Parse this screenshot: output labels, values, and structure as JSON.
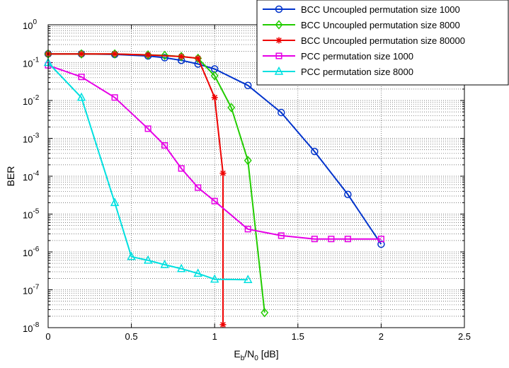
{
  "chart_data": {
    "type": "line",
    "xlabel": {
      "base": "E",
      "sub1": "b",
      "mid": "/N",
      "sub2": "0",
      "unit": " [dB]"
    },
    "ylabel": "BER",
    "xlim": [
      0,
      2.5
    ],
    "ylim_log10": [
      -8,
      0
    ],
    "y_scale": "log",
    "grid": true,
    "legend_position": "top-right",
    "x_ticks": [
      {
        "value": 0,
        "label": "0"
      },
      {
        "value": 0.5,
        "label": "0.5"
      },
      {
        "value": 1,
        "label": "1"
      },
      {
        "value": 1.5,
        "label": "1.5"
      },
      {
        "value": 2,
        "label": "2"
      },
      {
        "value": 2.5,
        "label": "2.5"
      }
    ],
    "y_ticks": [
      {
        "exp": 0,
        "base": "10",
        "sup": "0"
      },
      {
        "exp": -1,
        "base": "10",
        "sup": "-1"
      },
      {
        "exp": -2,
        "base": "10",
        "sup": "-2"
      },
      {
        "exp": -3,
        "base": "10",
        "sup": "-3"
      },
      {
        "exp": -4,
        "base": "10",
        "sup": "-4"
      },
      {
        "exp": -5,
        "base": "10",
        "sup": "-5"
      },
      {
        "exp": -6,
        "base": "10",
        "sup": "-6"
      },
      {
        "exp": -7,
        "base": "10",
        "sup": "-7"
      },
      {
        "exp": -8,
        "base": "10",
        "sup": "-8"
      }
    ],
    "series": [
      {
        "name": "BCC Uncoupled permutation size 1000",
        "color": "#0033cc",
        "marker": "circle",
        "x": [
          0,
          0.2,
          0.4,
          0.6,
          0.7,
          0.8,
          0.9,
          1.0,
          1.2,
          1.4,
          1.6,
          1.8,
          2.0
        ],
        "y": [
          0.17,
          0.17,
          0.165,
          0.15,
          0.135,
          0.115,
          0.092,
          0.068,
          0.025,
          0.0048,
          0.00045,
          3.3e-05,
          1.6e-06
        ]
      },
      {
        "name": "BCC Uncoupled permutation size 8000",
        "color": "#22cc00",
        "marker": "diamond",
        "x": [
          0,
          0.2,
          0.4,
          0.6,
          0.7,
          0.8,
          0.9,
          1.0,
          1.1,
          1.2,
          1.3
        ],
        "y": [
          0.17,
          0.17,
          0.17,
          0.16,
          0.155,
          0.145,
          0.13,
          0.045,
          0.0065,
          0.00026,
          2.5e-08
        ]
      },
      {
        "name": "BCC Uncoupled permutation size 80000",
        "color": "#ee0000",
        "marker": "star",
        "x": [
          0,
          0.2,
          0.4,
          0.6,
          0.8,
          0.9,
          1.0,
          1.05,
          1.05
        ],
        "y": [
          0.17,
          0.17,
          0.17,
          0.16,
          0.145,
          0.13,
          0.012,
          0.00012,
          1.2e-08
        ]
      },
      {
        "name": "PCC permutation size 1000",
        "color": "#e600e6",
        "marker": "square",
        "x": [
          0,
          0.2,
          0.4,
          0.6,
          0.7,
          0.8,
          0.9,
          1.0,
          1.2,
          1.4,
          1.6,
          1.7,
          1.8,
          2.0
        ],
        "y": [
          0.085,
          0.042,
          0.012,
          0.0018,
          0.00065,
          0.00016,
          5e-05,
          2.2e-05,
          4e-06,
          2.7e-06,
          2.2e-06,
          2.2e-06,
          2.2e-06,
          2.2e-06
        ]
      },
      {
        "name": "PCC permutation size 8000",
        "color": "#00e0e0",
        "marker": "triangle",
        "x": [
          0,
          0.2,
          0.4,
          0.5,
          0.6,
          0.7,
          0.8,
          0.9,
          1.0,
          1.2
        ],
        "y": [
          0.1,
          0.012,
          2e-05,
          7.5e-07,
          6e-07,
          4.6e-07,
          3.6e-07,
          2.7e-07,
          1.9e-07,
          1.85e-07
        ]
      }
    ]
  }
}
